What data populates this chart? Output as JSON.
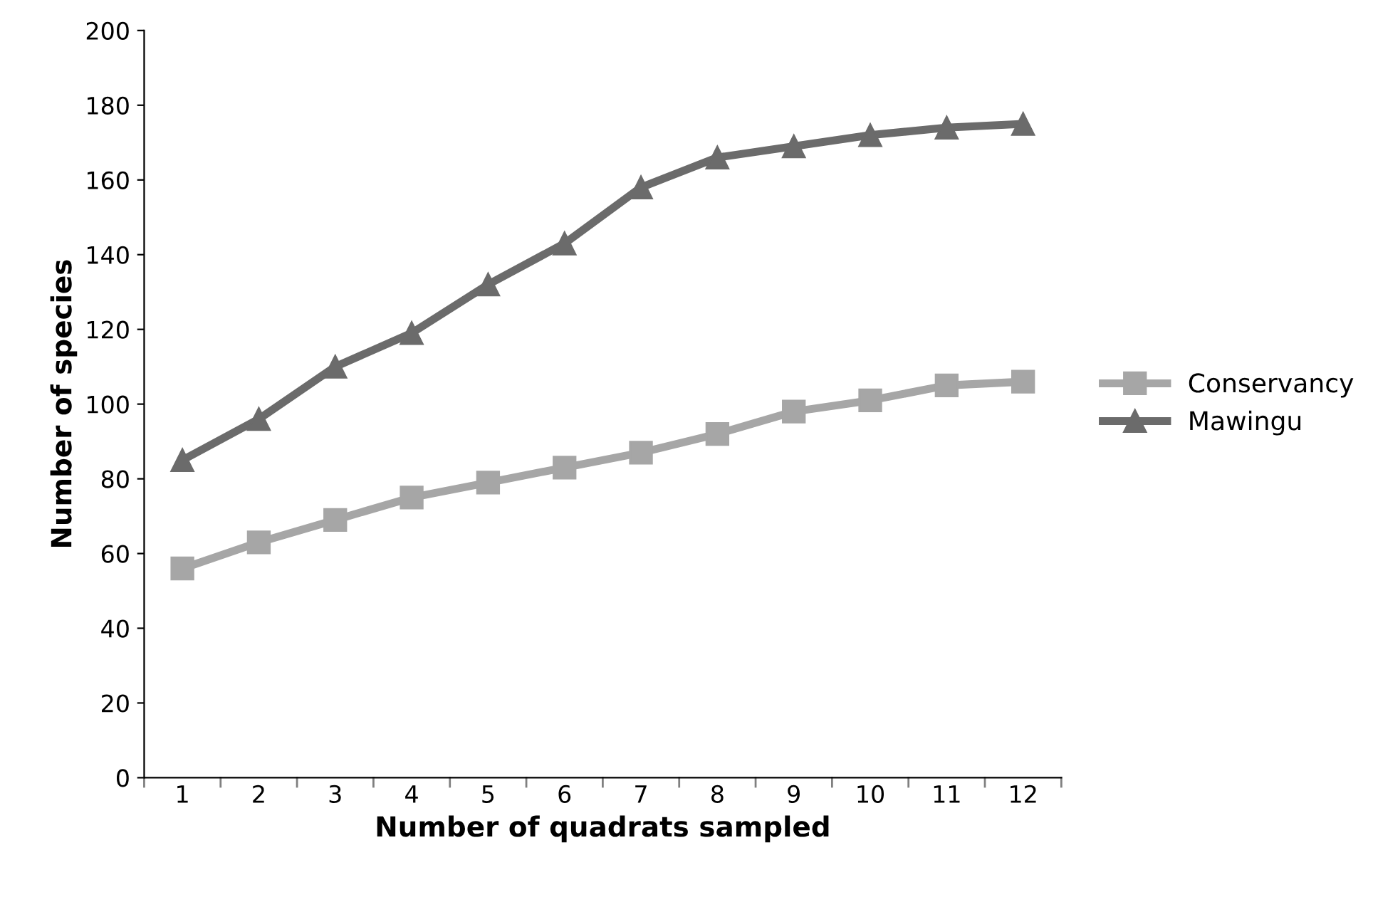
{
  "chart_data": {
    "type": "line",
    "xlabel": "Number of quadrats sampled",
    "ylabel": "Number of species",
    "categories": [
      "1",
      "2",
      "3",
      "4",
      "5",
      "6",
      "7",
      "8",
      "9",
      "10",
      "11",
      "12"
    ],
    "series": [
      {
        "name": "Conservancy",
        "color": "#a6a6a6",
        "marker": "square",
        "values": [
          56,
          63,
          69,
          75,
          79,
          83,
          87,
          92,
          98,
          101,
          105,
          106
        ]
      },
      {
        "name": "Mawingu",
        "color": "#6b6b6b",
        "marker": "triangle",
        "values": [
          85,
          96,
          110,
          119,
          132,
          143,
          158,
          166,
          169,
          172,
          174,
          175
        ]
      }
    ],
    "ylim": [
      0,
      200
    ],
    "yticks": [
      0,
      20,
      40,
      60,
      80,
      100,
      120,
      140,
      160,
      180,
      200
    ],
    "grid": false,
    "legend": "right",
    "line_style": "solid"
  }
}
